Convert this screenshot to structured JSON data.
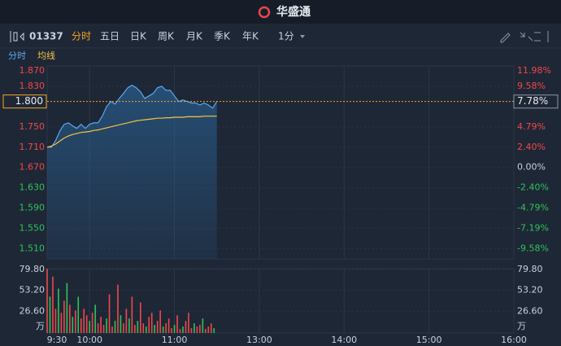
{
  "header": {
    "logo_text": "华盛通"
  },
  "toolbar": {
    "symbol": "01337",
    "tabs": [
      "分时",
      "五日",
      "日K",
      "周K",
      "月K",
      "季K",
      "年K"
    ],
    "active_tab": 0,
    "interval": "1分"
  },
  "chart_data": [
    {
      "type": "line",
      "x": [
        0,
        3,
        6,
        9,
        12,
        15,
        18,
        21,
        24,
        27,
        30,
        33,
        36,
        39,
        42,
        45,
        48,
        51,
        54,
        57,
        60,
        63,
        66,
        69,
        72,
        75,
        78,
        81,
        84,
        87,
        90,
        93,
        96,
        99,
        102,
        105,
        108,
        111,
        114,
        117,
        120
      ],
      "series": [
        {
          "name": "分时",
          "color": "#5aa9f0",
          "values": [
            1.71,
            1.71,
            1.723,
            1.742,
            1.755,
            1.758,
            1.752,
            1.747,
            1.755,
            1.747,
            1.755,
            1.758,
            1.758,
            1.771,
            1.79,
            1.8,
            1.795,
            1.806,
            1.816,
            1.827,
            1.832,
            1.827,
            1.819,
            1.806,
            1.811,
            1.816,
            1.827,
            1.83,
            1.822,
            1.822,
            1.811,
            1.8,
            1.803,
            1.8,
            1.797,
            1.797,
            1.793,
            1.797,
            1.793,
            1.787,
            1.8
          ]
        },
        {
          "name": "均线",
          "color": "#f5c542",
          "values": [
            1.71,
            1.712,
            1.716,
            1.722,
            1.728,
            1.732,
            1.735,
            1.737,
            1.739,
            1.74,
            1.741,
            1.743,
            1.744,
            1.746,
            1.748,
            1.75,
            1.752,
            1.754,
            1.756,
            1.758,
            1.76,
            1.762,
            1.763,
            1.764,
            1.765,
            1.766,
            1.767,
            1.767,
            1.768,
            1.768,
            1.769,
            1.769,
            1.769,
            1.77,
            1.77,
            1.77,
            1.77,
            1.771,
            1.771,
            1.771,
            1.771
          ]
        }
      ],
      "xlim": [
        0,
        330
      ],
      "ylim": [
        1.49,
        1.87
      ],
      "yticks": [
        {
          "value": 1.87,
          "label": "1.870"
        },
        {
          "value": 1.83,
          "label": "1.830"
        },
        {
          "value": 1.75,
          "label": "1.750"
        },
        {
          "value": 1.71,
          "label": "1.710"
        },
        {
          "value": 1.67,
          "label": "1.670"
        },
        {
          "value": 1.63,
          "label": "1.630"
        },
        {
          "value": 1.59,
          "label": "1.590"
        },
        {
          "value": 1.55,
          "label": "1.550"
        },
        {
          "value": 1.51,
          "label": "1.510"
        }
      ],
      "y2lim": [
        -10.78,
        11.98
      ],
      "y2ticks": [
        {
          "value": 11.98,
          "label": "11.98%"
        },
        {
          "value": 9.58,
          "label": "9.58%"
        },
        {
          "value": 4.79,
          "label": "4.79%"
        },
        {
          "value": 2.4,
          "label": "2.40%"
        },
        {
          "value": 0,
          "label": "0.00%"
        },
        {
          "value": -2.4,
          "label": "-2.40%"
        },
        {
          "value": -4.79,
          "label": "-4.79%"
        },
        {
          "value": -7.19,
          "label": "-7.19%"
        },
        {
          "value": -9.58,
          "label": "-9.58%"
        }
      ],
      "last_price": {
        "value": 1.8,
        "label": "1.800"
      },
      "last_change": {
        "value": 7.78,
        "label": "7.78%"
      },
      "up_color": "#f04848",
      "down_color": "#2fc25b"
    },
    {
      "type": "bar",
      "x": [
        0,
        2,
        4,
        6,
        8,
        10,
        12,
        14,
        16,
        18,
        20,
        22,
        24,
        26,
        28,
        30,
        32,
        34,
        36,
        38,
        40,
        42,
        44,
        46,
        48,
        50,
        52,
        54,
        56,
        58,
        60,
        62,
        64,
        66,
        68,
        70,
        72,
        74,
        76,
        78,
        80,
        82,
        84,
        86,
        88,
        90,
        92,
        94,
        96,
        98,
        100,
        102,
        104,
        106,
        108,
        110,
        112,
        114,
        116,
        118
      ],
      "values": [
        79.8,
        45,
        70,
        30,
        55,
        25,
        40,
        62,
        35,
        20,
        28,
        45,
        18,
        30,
        22,
        15,
        25,
        35,
        12,
        20,
        10,
        18,
        48,
        8,
        15,
        60,
        22,
        12,
        30,
        18,
        45,
        10,
        15,
        38,
        12,
        8,
        20,
        25,
        10,
        15,
        28,
        8,
        12,
        18,
        6,
        10,
        22,
        5,
        8,
        15,
        25,
        6,
        12,
        8,
        10,
        18,
        5,
        8,
        12,
        6
      ],
      "colors": [
        "#f04848",
        "#2fc25b",
        "#f04848",
        "#f04848",
        "#2fc25b",
        "#f04848",
        "#f04848",
        "#2fc25b",
        "#f04848",
        "#2fc25b",
        "#f04848",
        "#2fc25b",
        "#f04848",
        "#f04848",
        "#f04848",
        "#2fc25b",
        "#f04848",
        "#2fc25b",
        "#f04848",
        "#f04848",
        "#f04848",
        "#2fc25b",
        "#f04848",
        "#f04848",
        "#2fc25b",
        "#f04848",
        "#2fc25b",
        "#f04848",
        "#f04848",
        "#2fc25b",
        "#f04848",
        "#f04848",
        "#2fc25b",
        "#f04848",
        "#f04848",
        "#2fc25b",
        "#f04848",
        "#f04848",
        "#2fc25b",
        "#f04848",
        "#f04848",
        "#2fc25b",
        "#f04848",
        "#f04848",
        "#f04848",
        "#2fc25b",
        "#f04848",
        "#f04848",
        "#2fc25b",
        "#f04848",
        "#f04848",
        "#f04848",
        "#2fc25b",
        "#f04848",
        "#f04848",
        "#2fc25b",
        "#f04848",
        "#f04848",
        "#f04848",
        "#2fc25b"
      ],
      "xlim": [
        0,
        330
      ],
      "ylim": [
        0,
        79.8
      ],
      "yticks": [
        {
          "value": 79.8,
          "label": "79.80"
        },
        {
          "value": 53.2,
          "label": "53.20"
        },
        {
          "value": 26.6,
          "label": "26.60"
        }
      ],
      "unit": "万",
      "xticks": [
        {
          "value": 0,
          "label": "9:30"
        },
        {
          "value": 30,
          "label": "10:00"
        },
        {
          "value": 90,
          "label": "11:00"
        },
        {
          "value": 150,
          "label": "13:00"
        },
        {
          "value": 210,
          "label": "14:00"
        },
        {
          "value": 270,
          "label": "15:00"
        },
        {
          "value": 330,
          "label": "16:00"
        }
      ]
    }
  ]
}
